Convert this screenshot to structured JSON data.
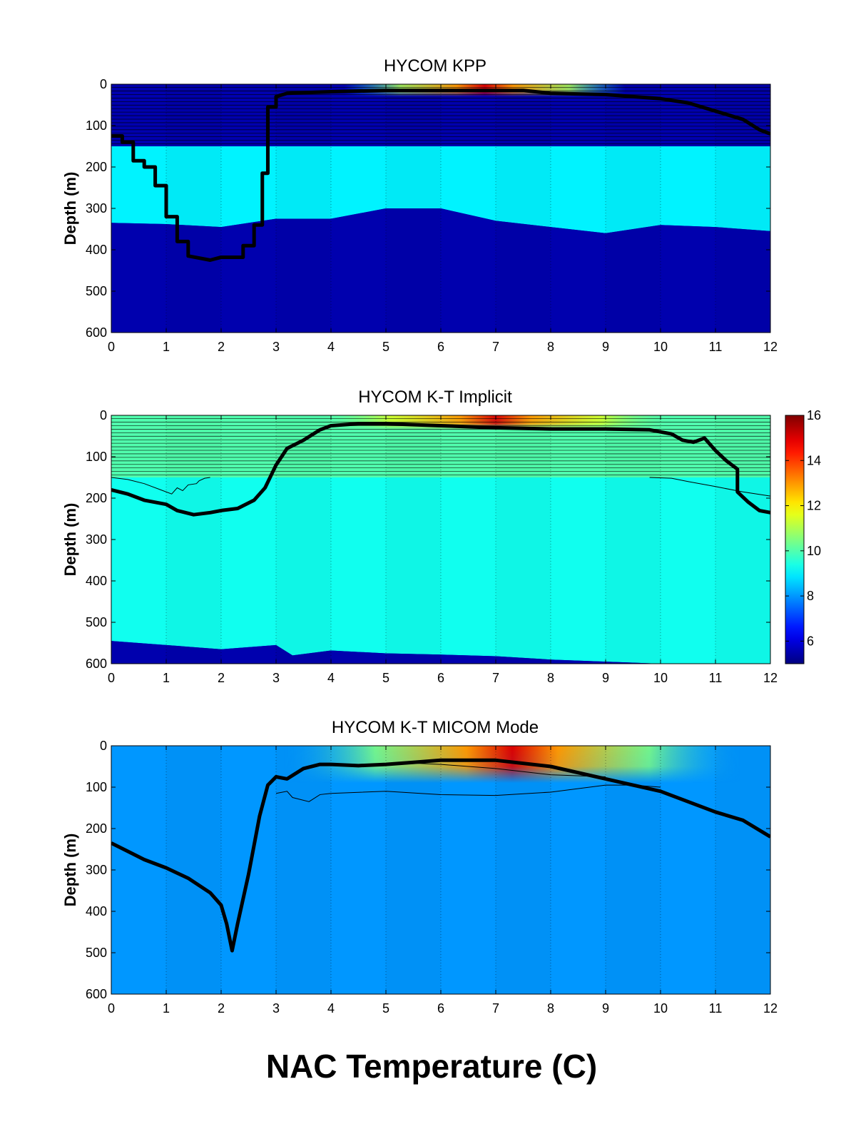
{
  "figure_title": "NAC Temperature (C)",
  "chart_data": [
    {
      "type": "heatmap",
      "title": "HYCOM KPP",
      "xlabel": "",
      "ylabel": "Depth (m)",
      "xlim": [
        0,
        12
      ],
      "ylim": [
        0,
        600
      ],
      "y_reversed": true,
      "x_ticks": [
        0,
        1,
        2,
        3,
        4,
        5,
        6,
        7,
        8,
        9,
        10,
        11,
        12
      ],
      "y_ticks": [
        0,
        100,
        200,
        300,
        400,
        500,
        600
      ],
      "grid": "vertical-dotted",
      "hatch_depth": [
        0,
        150
      ],
      "surface_warm": {
        "center": 6.8,
        "half_width": 1.6,
        "depth": 30,
        "peak_temp": 15
      },
      "regions": [
        {
          "temp": 9.0,
          "top": [
            [
              0,
              150
            ],
            [
              12,
              150
            ]
          ],
          "bottom": [
            [
              0,
              335
            ],
            [
              1,
              338
            ],
            [
              2,
              345
            ],
            [
              3,
              325
            ],
            [
              4,
              325
            ],
            [
              5,
              300
            ],
            [
              6,
              300
            ],
            [
              7,
              330
            ],
            [
              8,
              345
            ],
            [
              9,
              360
            ],
            [
              10,
              340
            ],
            [
              11,
              345
            ],
            [
              12,
              355
            ]
          ]
        },
        {
          "temp": 5.5,
          "top": [
            [
              0,
              335
            ],
            [
              1,
              338
            ],
            [
              2,
              345
            ],
            [
              3,
              325
            ],
            [
              4,
              325
            ],
            [
              5,
              300
            ],
            [
              6,
              300
            ],
            [
              7,
              330
            ],
            [
              8,
              345
            ],
            [
              9,
              360
            ],
            [
              10,
              340
            ],
            [
              11,
              345
            ],
            [
              12,
              355
            ]
          ],
          "bottom": [
            [
              0,
              600
            ],
            [
              12,
              600
            ]
          ]
        }
      ],
      "thin_lines": [],
      "mixed_layer": [
        [
          0,
          125
        ],
        [
          0.2,
          125
        ],
        [
          0.2,
          140
        ],
        [
          0.4,
          140
        ],
        [
          0.4,
          185
        ],
        [
          0.6,
          185
        ],
        [
          0.6,
          200
        ],
        [
          0.8,
          200
        ],
        [
          0.8,
          245
        ],
        [
          1,
          245
        ],
        [
          1,
          320
        ],
        [
          1.2,
          320
        ],
        [
          1.2,
          380
        ],
        [
          1.4,
          380
        ],
        [
          1.4,
          415
        ],
        [
          1.6,
          420
        ],
        [
          1.8,
          425
        ],
        [
          2,
          418
        ],
        [
          2.2,
          418
        ],
        [
          2.4,
          418
        ],
        [
          2.4,
          390
        ],
        [
          2.6,
          390
        ],
        [
          2.6,
          340
        ],
        [
          2.75,
          340
        ],
        [
          2.75,
          215
        ],
        [
          2.85,
          215
        ],
        [
          2.85,
          55
        ],
        [
          3,
          55
        ],
        [
          3,
          30
        ],
        [
          3.2,
          22
        ],
        [
          4,
          18
        ],
        [
          5,
          15
        ],
        [
          6,
          15
        ],
        [
          7.5,
          15
        ],
        [
          8,
          22
        ],
        [
          9,
          25
        ],
        [
          9.5,
          30
        ],
        [
          10,
          35
        ],
        [
          10.5,
          45
        ],
        [
          11,
          65
        ],
        [
          11.5,
          85
        ],
        [
          11.8,
          110
        ],
        [
          12,
          120
        ]
      ]
    },
    {
      "type": "heatmap",
      "title": "HYCOM K-T Implicit",
      "xlabel": "",
      "ylabel": "Depth (m)",
      "xlim": [
        0,
        12
      ],
      "ylim": [
        0,
        600
      ],
      "y_reversed": true,
      "x_ticks": [
        0,
        1,
        2,
        3,
        4,
        5,
        6,
        7,
        8,
        9,
        10,
        11,
        12
      ],
      "y_ticks": [
        0,
        100,
        200,
        300,
        400,
        500,
        600
      ],
      "grid": "vertical-dotted",
      "hatch_depth": [
        0,
        150
      ],
      "surface_warm": {
        "center": 7.0,
        "half_width": 2.0,
        "depth": 35,
        "peak_temp": 15
      },
      "regions": [
        {
          "temp": 10.0,
          "top": [
            [
              0,
              0
            ],
            [
              12,
              0
            ]
          ],
          "bottom": [
            [
              0,
              150
            ],
            [
              12,
              150
            ]
          ]
        },
        {
          "temp": 9.3,
          "top": [
            [
              0,
              150
            ],
            [
              12,
              150
            ]
          ],
          "bottom": [
            [
              0,
              545
            ],
            [
              1,
              555
            ],
            [
              2,
              565
            ],
            [
              3,
              555
            ],
            [
              3.3,
              580
            ],
            [
              4,
              568
            ],
            [
              5,
              575
            ],
            [
              6,
              578
            ],
            [
              7,
              582
            ],
            [
              8,
              590
            ],
            [
              9,
              595
            ],
            [
              10,
              600
            ],
            [
              12,
              600
            ]
          ]
        },
        {
          "temp": 5.5,
          "top": [
            [
              0,
              545
            ],
            [
              1,
              555
            ],
            [
              2,
              565
            ],
            [
              3,
              555
            ],
            [
              3.3,
              580
            ],
            [
              4,
              568
            ],
            [
              5,
              575
            ],
            [
              6,
              578
            ],
            [
              7,
              582
            ],
            [
              8,
              590
            ],
            [
              9,
              595
            ],
            [
              10,
              600
            ],
            [
              12,
              600
            ]
          ],
          "bottom": [
            [
              0,
              600
            ],
            [
              12,
              600
            ]
          ]
        }
      ],
      "thin_lines": [
        [
          [
            0,
            150
          ],
          [
            0.3,
            155
          ],
          [
            0.6,
            165
          ],
          [
            0.9,
            180
          ],
          [
            1.1,
            190
          ],
          [
            1.2,
            175
          ],
          [
            1.3,
            182
          ],
          [
            1.4,
            168
          ],
          [
            1.55,
            165
          ],
          [
            1.6,
            158
          ],
          [
            1.7,
            152
          ],
          [
            1.8,
            150
          ]
        ],
        [
          [
            9.8,
            150
          ],
          [
            10.2,
            152
          ],
          [
            10.5,
            160
          ],
          [
            11,
            172
          ],
          [
            11.5,
            185
          ],
          [
            12,
            195
          ]
        ]
      ],
      "mixed_layer": [
        [
          0,
          180
        ],
        [
          0.3,
          190
        ],
        [
          0.6,
          205
        ],
        [
          1,
          215
        ],
        [
          1.2,
          230
        ],
        [
          1.5,
          240
        ],
        [
          1.8,
          235
        ],
        [
          2,
          230
        ],
        [
          2.3,
          225
        ],
        [
          2.6,
          205
        ],
        [
          2.8,
          175
        ],
        [
          3,
          120
        ],
        [
          3.2,
          80
        ],
        [
          3.5,
          60
        ],
        [
          3.8,
          35
        ],
        [
          4,
          25
        ],
        [
          4.5,
          20
        ],
        [
          5,
          20
        ],
        [
          6,
          25
        ],
        [
          7,
          30
        ],
        [
          8,
          33
        ],
        [
          9,
          33
        ],
        [
          9.8,
          35
        ],
        [
          10.2,
          45
        ],
        [
          10.4,
          60
        ],
        [
          10.6,
          65
        ],
        [
          10.8,
          55
        ],
        [
          11,
          85
        ],
        [
          11.2,
          110
        ],
        [
          11.3,
          120
        ],
        [
          11.4,
          130
        ],
        [
          11.4,
          185
        ],
        [
          11.6,
          210
        ],
        [
          11.8,
          230
        ],
        [
          12,
          235
        ]
      ]
    },
    {
      "type": "heatmap",
      "title": "HYCOM K-T MICOM Mode",
      "xlabel": "",
      "ylabel": "Depth (m)",
      "xlim": [
        0,
        12
      ],
      "ylim": [
        0,
        600
      ],
      "y_reversed": true,
      "x_ticks": [
        0,
        1,
        2,
        3,
        4,
        5,
        6,
        7,
        8,
        9,
        10,
        11,
        12
      ],
      "y_ticks": [
        0,
        100,
        200,
        300,
        400,
        500,
        600
      ],
      "grid": "vertical-dotted",
      "hatch_depth": [
        0,
        0
      ],
      "surface_warm": {
        "center": 7.3,
        "half_width": 2.6,
        "depth": 90,
        "peak_temp": 15
      },
      "regions": [
        {
          "temp": 8.0,
          "top": [
            [
              0,
              0
            ],
            [
              12,
              0
            ]
          ],
          "bottom": [
            [
              0,
              600
            ],
            [
              12,
              600
            ]
          ]
        }
      ],
      "thin_lines": [
        [
          [
            3,
            115
          ],
          [
            3.2,
            110
          ],
          [
            3.3,
            125
          ],
          [
            3.6,
            135
          ],
          [
            3.8,
            118
          ],
          [
            4,
            115
          ],
          [
            5,
            110
          ],
          [
            6,
            118
          ],
          [
            7,
            120
          ],
          [
            8,
            112
          ],
          [
            9,
            95
          ],
          [
            9.5,
            95
          ],
          [
            10,
            100
          ]
        ],
        [
          [
            4.8,
            45
          ],
          [
            5.5,
            42
          ],
          [
            6,
            45
          ],
          [
            7,
            55
          ],
          [
            8,
            70
          ],
          [
            9,
            75
          ]
        ]
      ],
      "mixed_layer": [
        [
          0,
          235
        ],
        [
          0.3,
          255
        ],
        [
          0.6,
          275
        ],
        [
          1,
          295
        ],
        [
          1.4,
          320
        ],
        [
          1.8,
          355
        ],
        [
          2,
          385
        ],
        [
          2.1,
          430
        ],
        [
          2.2,
          495
        ],
        [
          2.3,
          430
        ],
        [
          2.5,
          310
        ],
        [
          2.7,
          170
        ],
        [
          2.85,
          95
        ],
        [
          3,
          75
        ],
        [
          3.2,
          80
        ],
        [
          3.5,
          55
        ],
        [
          3.8,
          45
        ],
        [
          4,
          45
        ],
        [
          4.5,
          48
        ],
        [
          5,
          45
        ],
        [
          5.5,
          40
        ],
        [
          6,
          35
        ],
        [
          7,
          35
        ],
        [
          8,
          50
        ],
        [
          9,
          80
        ],
        [
          10,
          110
        ],
        [
          11,
          160
        ],
        [
          11.5,
          180
        ],
        [
          12,
          220
        ]
      ]
    }
  ],
  "colorbar": {
    "vmin": 5,
    "vmax": 16,
    "ticks": [
      6,
      8,
      10,
      12,
      14,
      16
    ],
    "colormap": "jet"
  }
}
